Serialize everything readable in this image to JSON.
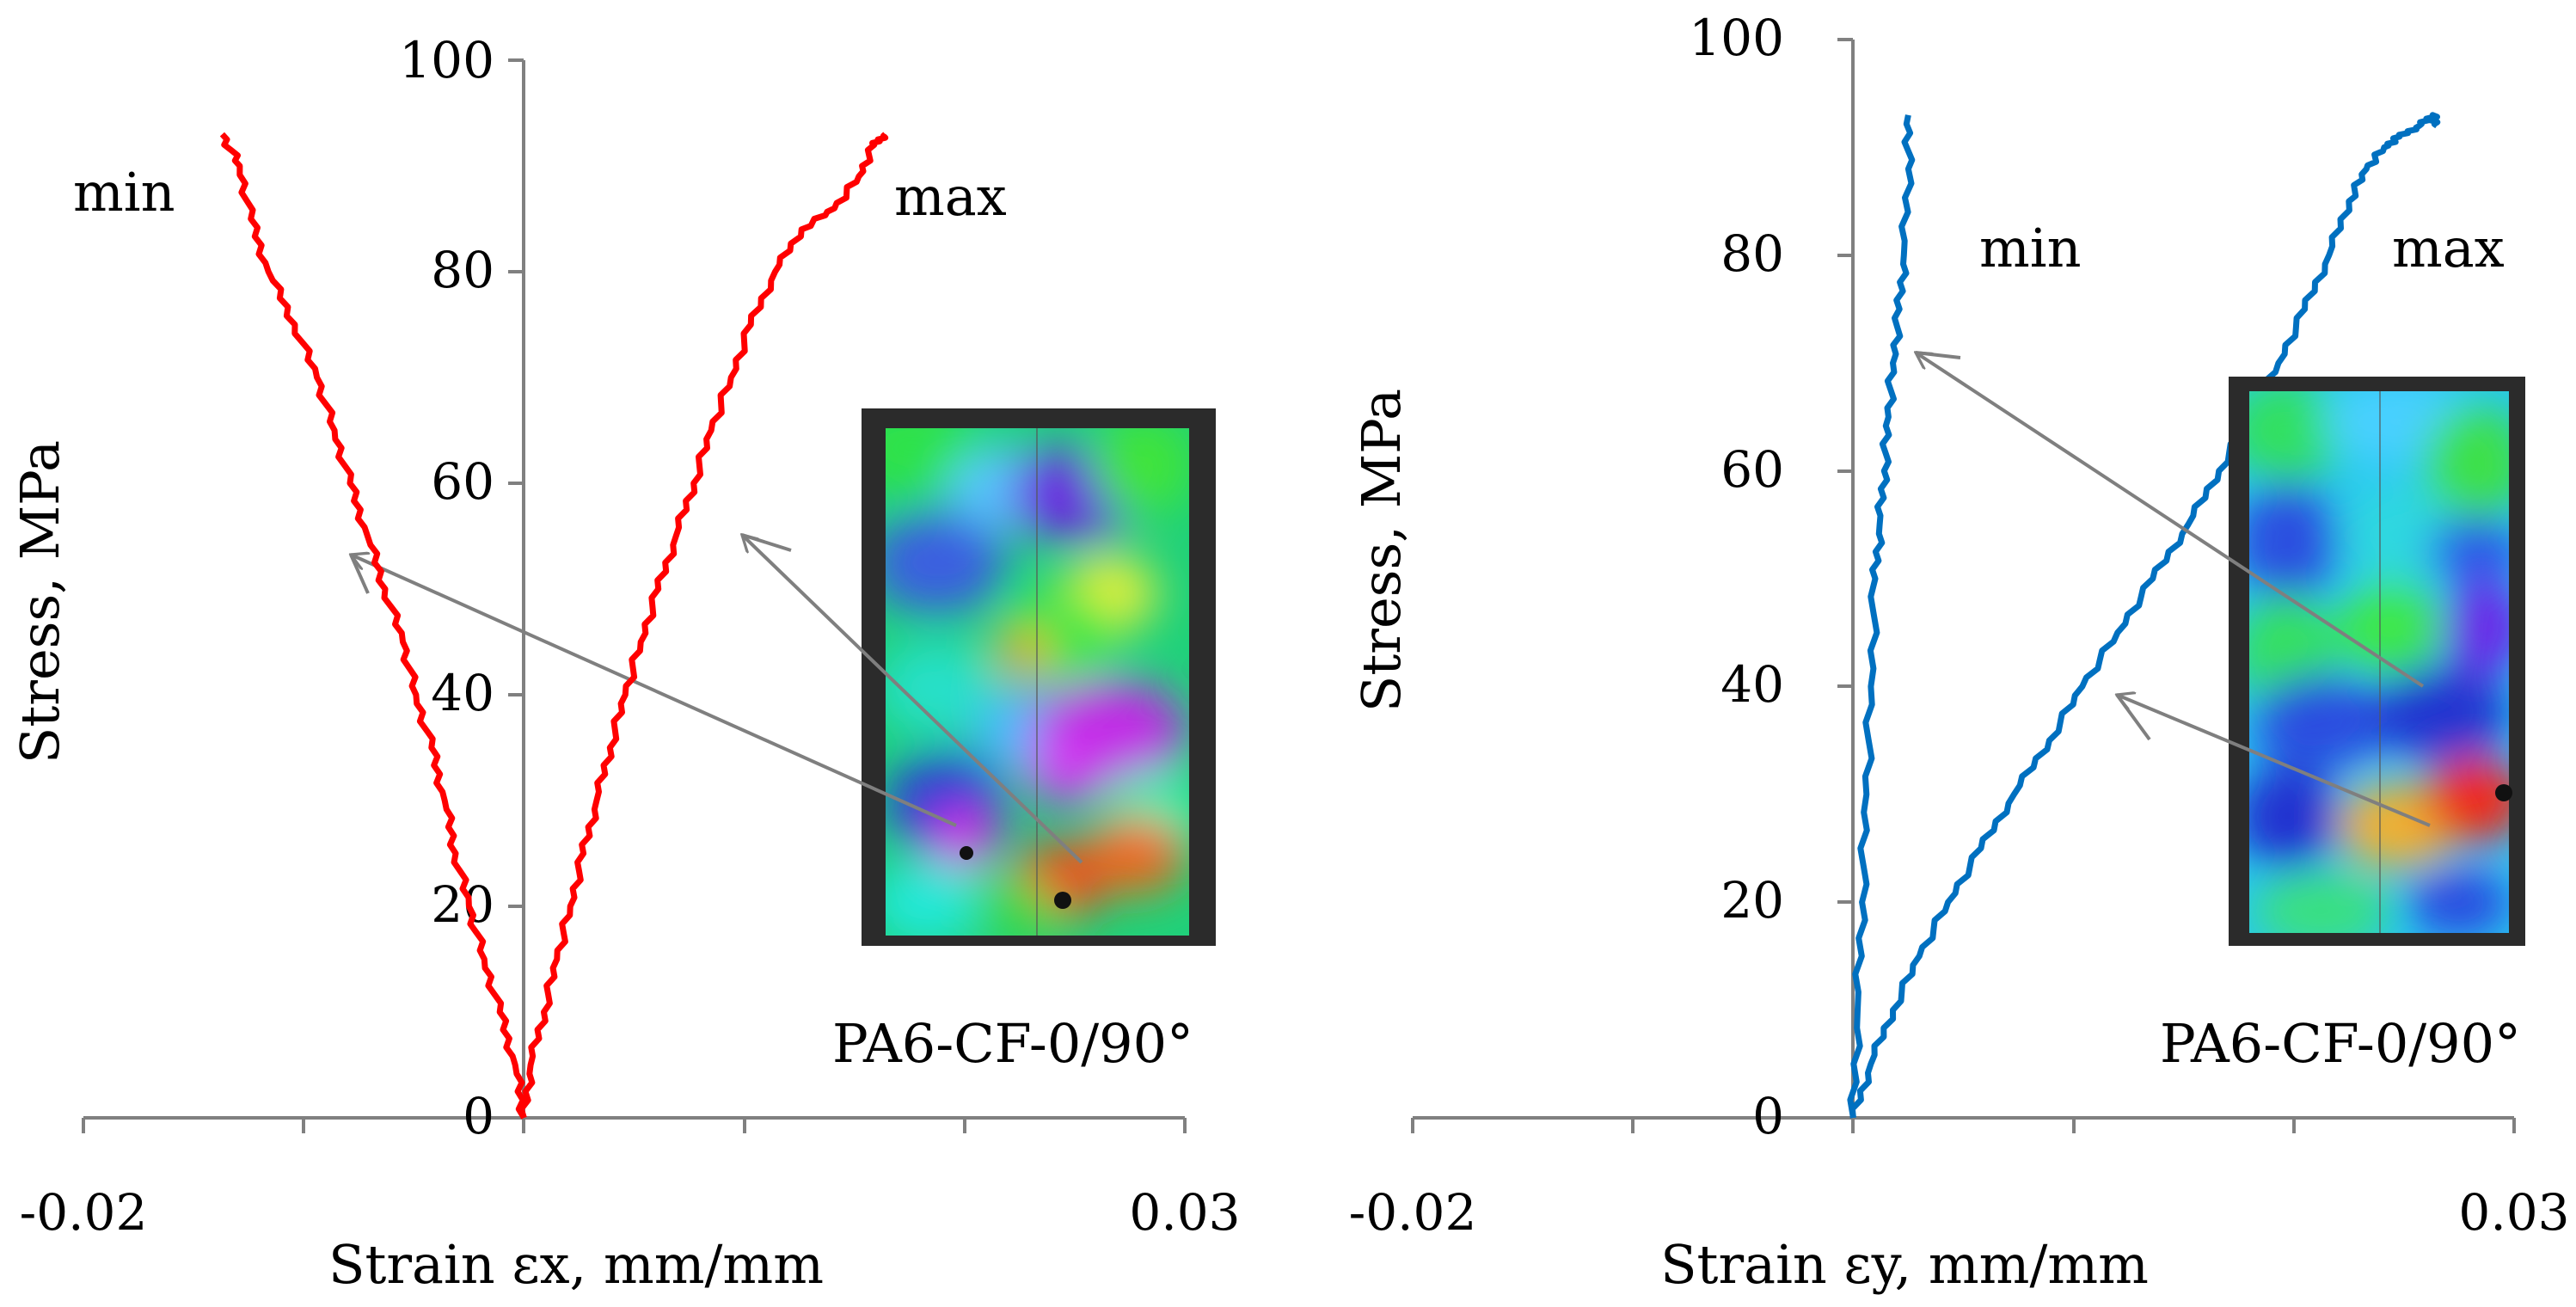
{
  "chart_data": [
    {
      "type": "line",
      "panel": "left",
      "xlabel": "Strain εx, mm/mm",
      "ylabel": "Stress, MPa",
      "xlim": [
        -0.02,
        0.03
      ],
      "ylim": [
        0,
        100
      ],
      "xtick_labels": [
        "-0.02",
        "0.03"
      ],
      "ytick_labels": [
        "0",
        "20",
        "40",
        "60",
        "80",
        "100"
      ],
      "series_color": "#ff0000",
      "series": [
        {
          "name": "min",
          "x": [
            0,
            -0.0004,
            -0.0011,
            -0.0018,
            -0.0025,
            -0.0031,
            -0.0036,
            -0.0042,
            -0.0049,
            -0.0055,
            -0.0063,
            -0.0071,
            -0.0079,
            -0.0086,
            -0.0094,
            -0.0104,
            -0.0116,
            -0.0124,
            -0.0129,
            -0.0137
          ],
          "y": [
            0,
            5,
            10,
            15,
            20,
            25,
            30,
            35,
            40,
            45,
            50,
            55,
            60,
            65,
            70,
            75,
            80,
            85,
            90,
            93
          ]
        },
        {
          "name": "max",
          "x": [
            0,
            0.0003,
            0.0009,
            0.0015,
            0.0021,
            0.0027,
            0.0033,
            0.0039,
            0.0046,
            0.0053,
            0.0061,
            0.0069,
            0.0077,
            0.0085,
            0.0094,
            0.0103,
            0.0114,
            0.0126,
            0.0141,
            0.0152,
            0.0159,
            0.0164
          ],
          "y": [
            0,
            5,
            10,
            15,
            20,
            25,
            30,
            35,
            40,
            45,
            50,
            55,
            60,
            65,
            70,
            75,
            80,
            84,
            86,
            89,
            92,
            93
          ]
        }
      ],
      "annotations": [
        "min",
        "max",
        "PA6-CF-0/90°"
      ]
    },
    {
      "type": "line",
      "panel": "right",
      "xlabel": "Strain εy, mm/mm",
      "ylabel": "Stress, MPa",
      "xlim": [
        -0.02,
        0.03
      ],
      "ylim": [
        0,
        100
      ],
      "xtick_labels": [
        "-0.02",
        "0.03"
      ],
      "ytick_labels": [
        "0",
        "20",
        "40",
        "60",
        "80",
        "100"
      ],
      "series_color": "#0070c0",
      "series": [
        {
          "name": "min",
          "x": [
            0,
            0.0002,
            0.0004,
            0.0006,
            0.0008,
            0.001,
            0.0012,
            0.0014,
            0.0016,
            0.0018,
            0.0021,
            0.0023,
            0.0025,
            0.0025
          ],
          "y": [
            0,
            10,
            20,
            30,
            40,
            50,
            55,
            60,
            65,
            70,
            75,
            80,
            88,
            93
          ]
        },
        {
          "name": "max",
          "x": [
            0,
            0.0008,
            0.0018,
            0.003,
            0.0043,
            0.0058,
            0.0073,
            0.0089,
            0.0104,
            0.012,
            0.0136,
            0.0152,
            0.0166,
            0.018,
            0.0193,
            0.0205,
            0.0216,
            0.0225,
            0.0233,
            0.0241,
            0.0248,
            0.0257,
            0.0263,
            0.0265
          ],
          "y": [
            0,
            5,
            10,
            15,
            20,
            25,
            30,
            35,
            40,
            45,
            50,
            55,
            60,
            65,
            70,
            75,
            80,
            85,
            88,
            90,
            91,
            92,
            93,
            92
          ]
        }
      ],
      "annotations": [
        "min",
        "max",
        "PA6-CF-0/90°"
      ]
    }
  ],
  "colors": {
    "series_left": "#ff0000",
    "series_right": "#0070c0",
    "axis": "#808080",
    "arrow": "#7f7f7f"
  }
}
